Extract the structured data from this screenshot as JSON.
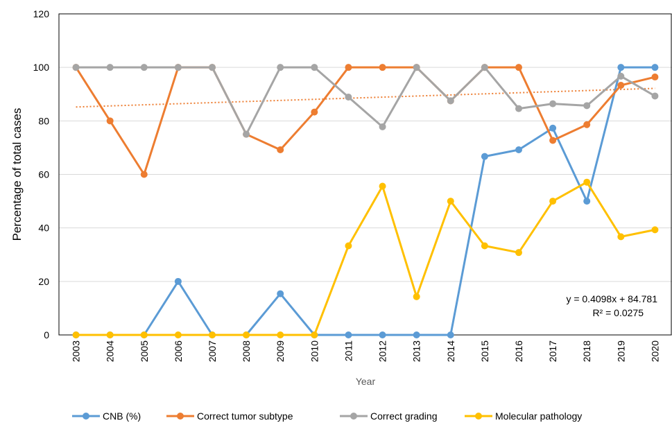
{
  "chart_data": {
    "type": "line",
    "title": "",
    "xlabel": "Year",
    "ylabel": "Percentage of total cases",
    "ylim": [
      0,
      120
    ],
    "yticks": [
      0,
      20,
      40,
      60,
      80,
      100,
      120
    ],
    "grid": "horizontal",
    "legend_position": "bottom",
    "categories": [
      "2003",
      "2004",
      "2005",
      "2006",
      "2007",
      "2008",
      "2009",
      "2010",
      "2011",
      "2012",
      "2013",
      "2014",
      "2015",
      "2016",
      "2017",
      "2018",
      "2019",
      "2020"
    ],
    "series": [
      {
        "name": "CNB (%)",
        "color": "#5B9BD5",
        "values": [
          0,
          0,
          0,
          20,
          0,
          0,
          15.4,
          0,
          0,
          0,
          0,
          0,
          66.7,
          69.2,
          77.3,
          50,
          100,
          100
        ]
      },
      {
        "name": "Correct tumor subtype",
        "color": "#ED7D31",
        "values": [
          100,
          80,
          60,
          100,
          100,
          75,
          69.2,
          83.3,
          100,
          100,
          100,
          87.5,
          100,
          100,
          72.7,
          78.6,
          93.3,
          96.4
        ]
      },
      {
        "name": "Correct grading",
        "color": "#A5A5A5",
        "values": [
          100,
          100,
          100,
          100,
          100,
          75,
          100,
          100,
          88.9,
          77.8,
          100,
          87.5,
          100,
          84.6,
          86.4,
          85.7,
          96.7,
          89.3
        ]
      },
      {
        "name": "Molecular pathology",
        "color": "#FFC000",
        "values": [
          0,
          0,
          0,
          0,
          0,
          0,
          0,
          0,
          33.3,
          55.6,
          14.3,
          50,
          33.3,
          30.8,
          50,
          57.1,
          36.7,
          39.3
        ]
      }
    ],
    "trendline": {
      "series": "Correct tumor subtype",
      "color": "#ED7D31",
      "style": "dotted",
      "slope": 0.4098,
      "intercept": 84.781,
      "equation": "y = 0.4098x + 84.781",
      "r_squared": "R² = 0.0275"
    }
  }
}
